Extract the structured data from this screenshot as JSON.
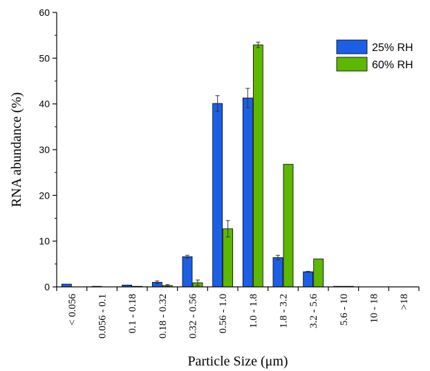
{
  "chart_data": {
    "type": "bar",
    "title": "",
    "xlabel": "Particle Size (μm)",
    "ylabel": "RNA abundance (%)",
    "ylim": [
      0,
      60
    ],
    "yticks": [
      "0",
      "10",
      "20",
      "30",
      "40",
      "50",
      "60"
    ],
    "categories": [
      "< 0.056",
      "0.056 - 0.1",
      "0.1 - 0.18",
      "0.18 - 0.32",
      "0.32 - 0.56",
      "0.56 - 1.0",
      "1.0 - 1.8",
      "1.8 - 3.2",
      "3.2 - 5.6",
      "5.6 - 10",
      "10 - 18",
      ">18"
    ],
    "series": [
      {
        "name": "25% RH",
        "color": "#1a5fe6",
        "values": [
          0.6,
          0.1,
          0.4,
          1.0,
          6.6,
          40.1,
          41.3,
          6.4,
          3.3,
          0.1,
          0,
          0
        ],
        "errors": [
          0,
          0,
          0,
          0.3,
          0.3,
          1.7,
          2.1,
          0.5,
          0.1,
          0,
          0,
          0
        ]
      },
      {
        "name": "60% RH",
        "color": "#5cb800",
        "values": [
          0,
          0,
          0.1,
          0.3,
          0.9,
          12.7,
          52.9,
          26.8,
          6.1,
          0.1,
          0,
          0
        ],
        "errors": [
          0,
          0,
          0,
          0.2,
          0.6,
          1.8,
          0.6,
          0,
          0,
          0,
          0,
          0
        ]
      }
    ],
    "legend_position": "top-right",
    "grid": false
  }
}
